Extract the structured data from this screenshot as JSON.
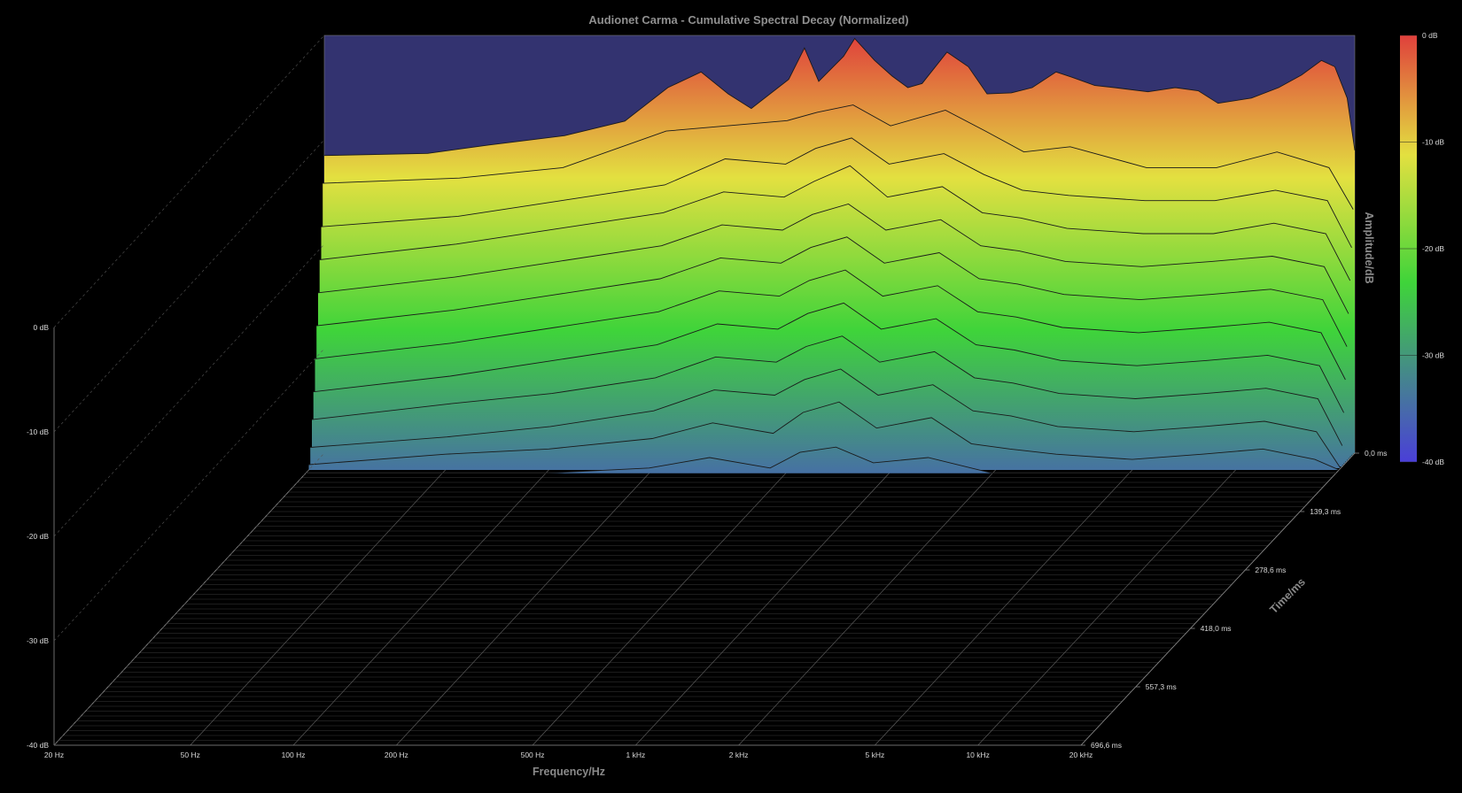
{
  "chart_data": {
    "type": "waterfall",
    "title": "Audionet Carma - Cumulative Spectral Decay (Normalized)",
    "xlabel": "Frequency/Hz",
    "ylabel": "Time/ms",
    "zlabel": "Amplitude/dB",
    "x_scale": "log",
    "x_ticks": [
      "20 Hz",
      "50 Hz",
      "100 Hz",
      "200 Hz",
      "500 Hz",
      "1 kHz",
      "2 kHz",
      "5 kHz",
      "10 kHz",
      "20 kHz"
    ],
    "x_tick_values": [
      20,
      50,
      100,
      200,
      500,
      1000,
      2000,
      5000,
      10000,
      20000
    ],
    "xlim": [
      20,
      20000
    ],
    "y_ticks": [
      "0,0 ms",
      "139,3 ms",
      "278,6 ms",
      "418,0 ms",
      "557,3 ms",
      "696,6 ms"
    ],
    "y_tick_values": [
      0,
      139.3,
      278.6,
      418.0,
      557.3,
      696.6
    ],
    "ylim": [
      0,
      696.6
    ],
    "z_ticks": [
      "0 dB",
      "-10 dB",
      "-20 dB",
      "-30 dB",
      "-40 dB"
    ],
    "z_tick_values": [
      0,
      -10,
      -20,
      -30,
      -40
    ],
    "zlim": [
      -40,
      0
    ],
    "colorbar_ticks": [
      "0 dB",
      "-10 dB",
      "-20 dB",
      "-30 dB",
      "-40 dB"
    ],
    "colormap": [
      "#e0403c",
      "#e3e040",
      "#3fd43a",
      "#4a3fd8"
    ],
    "slices": [
      {
        "time_ms": 0,
        "points": [
          [
            20,
            -11.5
          ],
          [
            40,
            -11.3
          ],
          [
            60,
            -10.5
          ],
          [
            100,
            -9.6
          ],
          [
            150,
            -8.2
          ],
          [
            200,
            -5.0
          ],
          [
            250,
            -3.5
          ],
          [
            300,
            -5.6
          ],
          [
            350,
            -7.0
          ],
          [
            450,
            -4.2
          ],
          [
            500,
            -1.2
          ],
          [
            550,
            -4.4
          ],
          [
            650,
            -2.0
          ],
          [
            700,
            -0.3
          ],
          [
            800,
            -2.4
          ],
          [
            900,
            -3.9
          ],
          [
            1000,
            -5.0
          ],
          [
            1100,
            -4.6
          ],
          [
            1300,
            -1.6
          ],
          [
            1500,
            -3.0
          ],
          [
            1700,
            -5.6
          ],
          [
            2000,
            -5.5
          ],
          [
            2300,
            -5.0
          ],
          [
            2700,
            -3.5
          ],
          [
            3000,
            -4.0
          ],
          [
            3500,
            -4.8
          ],
          [
            4000,
            -5.0
          ],
          [
            5000,
            -5.4
          ],
          [
            6000,
            -5.0
          ],
          [
            7000,
            -5.3
          ],
          [
            8000,
            -6.5
          ],
          [
            10000,
            -6.0
          ],
          [
            12000,
            -5.0
          ],
          [
            14000,
            -3.8
          ],
          [
            16000,
            -2.4
          ],
          [
            17500,
            -3.0
          ],
          [
            19000,
            -6.0
          ],
          [
            20000,
            -11.0
          ]
        ]
      },
      {
        "time_ms": 4,
        "points": [
          [
            20,
            -14.0
          ],
          [
            50,
            -13.5
          ],
          [
            100,
            -12.5
          ],
          [
            200,
            -9.0
          ],
          [
            300,
            -8.5
          ],
          [
            450,
            -8.0
          ],
          [
            550,
            -7.2
          ],
          [
            700,
            -6.5
          ],
          [
            900,
            -8.5
          ],
          [
            1300,
            -7.0
          ],
          [
            1700,
            -9.0
          ],
          [
            2200,
            -11.0
          ],
          [
            3000,
            -10.5
          ],
          [
            5000,
            -12.5
          ],
          [
            8000,
            -12.5
          ],
          [
            12000,
            -11.0
          ],
          [
            17000,
            -12.5
          ],
          [
            20000,
            -16.5
          ]
        ]
      },
      {
        "time_ms": 8,
        "points": [
          [
            20,
            -18.0
          ],
          [
            50,
            -17.0
          ],
          [
            100,
            -15.5
          ],
          [
            200,
            -14.0
          ],
          [
            300,
            -11.5
          ],
          [
            450,
            -12.0
          ],
          [
            550,
            -10.5
          ],
          [
            700,
            -9.5
          ],
          [
            900,
            -12.0
          ],
          [
            1300,
            -11.0
          ],
          [
            1700,
            -13.0
          ],
          [
            2200,
            -14.5
          ],
          [
            3000,
            -15.0
          ],
          [
            5000,
            -15.5
          ],
          [
            8000,
            -15.5
          ],
          [
            12000,
            -14.5
          ],
          [
            17000,
            -15.5
          ],
          [
            20000,
            -20.0
          ]
        ]
      },
      {
        "time_ms": 12,
        "points": [
          [
            20,
            -21.0
          ],
          [
            50,
            -19.5
          ],
          [
            100,
            -18.0
          ],
          [
            200,
            -16.5
          ],
          [
            300,
            -14.5
          ],
          [
            450,
            -15.0
          ],
          [
            550,
            -13.5
          ],
          [
            700,
            -12.0
          ],
          [
            900,
            -15.0
          ],
          [
            1300,
            -14.0
          ],
          [
            1700,
            -16.5
          ],
          [
            2200,
            -17.0
          ],
          [
            3000,
            -18.0
          ],
          [
            5000,
            -18.5
          ],
          [
            8000,
            -18.5
          ],
          [
            12000,
            -17.5
          ],
          [
            17000,
            -18.5
          ],
          [
            20000,
            -23.0
          ]
        ]
      },
      {
        "time_ms": 16,
        "points": [
          [
            20,
            -24.0
          ],
          [
            50,
            -22.5
          ],
          [
            100,
            -21.0
          ],
          [
            200,
            -19.5
          ],
          [
            300,
            -17.5
          ],
          [
            450,
            -18.0
          ],
          [
            550,
            -16.5
          ],
          [
            700,
            -15.5
          ],
          [
            900,
            -18.0
          ],
          [
            1300,
            -17.0
          ],
          [
            1700,
            -19.5
          ],
          [
            2200,
            -20.0
          ],
          [
            3000,
            -21.0
          ],
          [
            5000,
            -21.5
          ],
          [
            8000,
            -21.0
          ],
          [
            12000,
            -20.5
          ],
          [
            17000,
            -21.5
          ],
          [
            20000,
            -26.0
          ]
        ]
      },
      {
        "time_ms": 20,
        "points": [
          [
            20,
            -27.0
          ],
          [
            50,
            -25.5
          ],
          [
            100,
            -24.0
          ],
          [
            200,
            -22.5
          ],
          [
            300,
            -20.5
          ],
          [
            450,
            -21.0
          ],
          [
            550,
            -19.5
          ],
          [
            700,
            -18.5
          ],
          [
            900,
            -21.0
          ],
          [
            1300,
            -20.0
          ],
          [
            1700,
            -22.5
          ],
          [
            2200,
            -23.0
          ],
          [
            3000,
            -24.0
          ],
          [
            5000,
            -24.5
          ],
          [
            8000,
            -24.0
          ],
          [
            12000,
            -23.5
          ],
          [
            17000,
            -24.5
          ],
          [
            20000,
            -29.0
          ]
        ]
      },
      {
        "time_ms": 24,
        "points": [
          [
            20,
            -30.0
          ],
          [
            50,
            -28.5
          ],
          [
            100,
            -27.0
          ],
          [
            200,
            -25.5
          ],
          [
            300,
            -23.5
          ],
          [
            450,
            -24.0
          ],
          [
            550,
            -22.5
          ],
          [
            700,
            -21.5
          ],
          [
            900,
            -24.0
          ],
          [
            1300,
            -23.0
          ],
          [
            1700,
            -25.5
          ],
          [
            2200,
            -26.0
          ],
          [
            3000,
            -27.0
          ],
          [
            5000,
            -27.5
          ],
          [
            8000,
            -27.0
          ],
          [
            12000,
            -26.5
          ],
          [
            17000,
            -27.5
          ],
          [
            20000,
            -32.0
          ]
        ]
      },
      {
        "time_ms": 28,
        "points": [
          [
            20,
            -33.0
          ],
          [
            50,
            -31.5
          ],
          [
            100,
            -30.0
          ],
          [
            200,
            -28.5
          ],
          [
            300,
            -26.5
          ],
          [
            450,
            -27.0
          ],
          [
            550,
            -25.5
          ],
          [
            700,
            -24.5
          ],
          [
            900,
            -27.0
          ],
          [
            1300,
            -26.0
          ],
          [
            1700,
            -28.5
          ],
          [
            2200,
            -29.0
          ],
          [
            3000,
            -30.0
          ],
          [
            5000,
            -30.5
          ],
          [
            8000,
            -30.0
          ],
          [
            12000,
            -29.5
          ],
          [
            17000,
            -30.5
          ],
          [
            20000,
            -35.0
          ]
        ]
      },
      {
        "time_ms": 32,
        "points": [
          [
            20,
            -35.5
          ],
          [
            50,
            -34.0
          ],
          [
            100,
            -33.0
          ],
          [
            200,
            -31.5
          ],
          [
            300,
            -29.5
          ],
          [
            450,
            -30.0
          ],
          [
            550,
            -28.5
          ],
          [
            700,
            -27.5
          ],
          [
            900,
            -30.0
          ],
          [
            1300,
            -29.0
          ],
          [
            1700,
            -31.5
          ],
          [
            2200,
            -32.0
          ],
          [
            3000,
            -33.0
          ],
          [
            5000,
            -33.5
          ],
          [
            8000,
            -33.0
          ],
          [
            12000,
            -32.5
          ],
          [
            17000,
            -33.5
          ],
          [
            20000,
            -38.0
          ]
        ]
      },
      {
        "time_ms": 36,
        "points": [
          [
            20,
            -38.0
          ],
          [
            50,
            -37.0
          ],
          [
            100,
            -36.0
          ],
          [
            200,
            -34.5
          ],
          [
            300,
            -32.5
          ],
          [
            450,
            -33.0
          ],
          [
            550,
            -31.5
          ],
          [
            700,
            -30.5
          ],
          [
            900,
            -33.0
          ],
          [
            1300,
            -32.0
          ],
          [
            1700,
            -34.5
          ],
          [
            2200,
            -35.0
          ],
          [
            3000,
            -36.0
          ],
          [
            5000,
            -36.5
          ],
          [
            8000,
            -36.0
          ],
          [
            12000,
            -35.5
          ],
          [
            17000,
            -36.5
          ],
          [
            20000,
            -40.0
          ]
        ]
      },
      {
        "time_ms": 40,
        "points": [
          [
            20,
            -39.5
          ],
          [
            50,
            -38.5
          ],
          [
            100,
            -38.0
          ],
          [
            200,
            -37.0
          ],
          [
            300,
            -35.5
          ],
          [
            450,
            -36.5
          ],
          [
            550,
            -34.5
          ],
          [
            700,
            -33.5
          ],
          [
            900,
            -36.0
          ],
          [
            1300,
            -35.0
          ],
          [
            1700,
            -37.5
          ],
          [
            2200,
            -38.0
          ],
          [
            3000,
            -38.5
          ],
          [
            5000,
            -39.0
          ],
          [
            8000,
            -38.5
          ],
          [
            12000,
            -38.0
          ],
          [
            17000,
            -39.0
          ],
          [
            20000,
            -40.0
          ]
        ]
      },
      {
        "time_ms": 48,
        "points": [
          [
            20,
            -40.0
          ],
          [
            100,
            -40.0
          ],
          [
            200,
            -39.5
          ],
          [
            300,
            -38.5
          ],
          [
            450,
            -39.5
          ],
          [
            550,
            -38.0
          ],
          [
            700,
            -37.5
          ],
          [
            900,
            -39.0
          ],
          [
            1300,
            -38.5
          ],
          [
            2000,
            -40.0
          ],
          [
            20000,
            -40.0
          ]
        ]
      }
    ]
  }
}
